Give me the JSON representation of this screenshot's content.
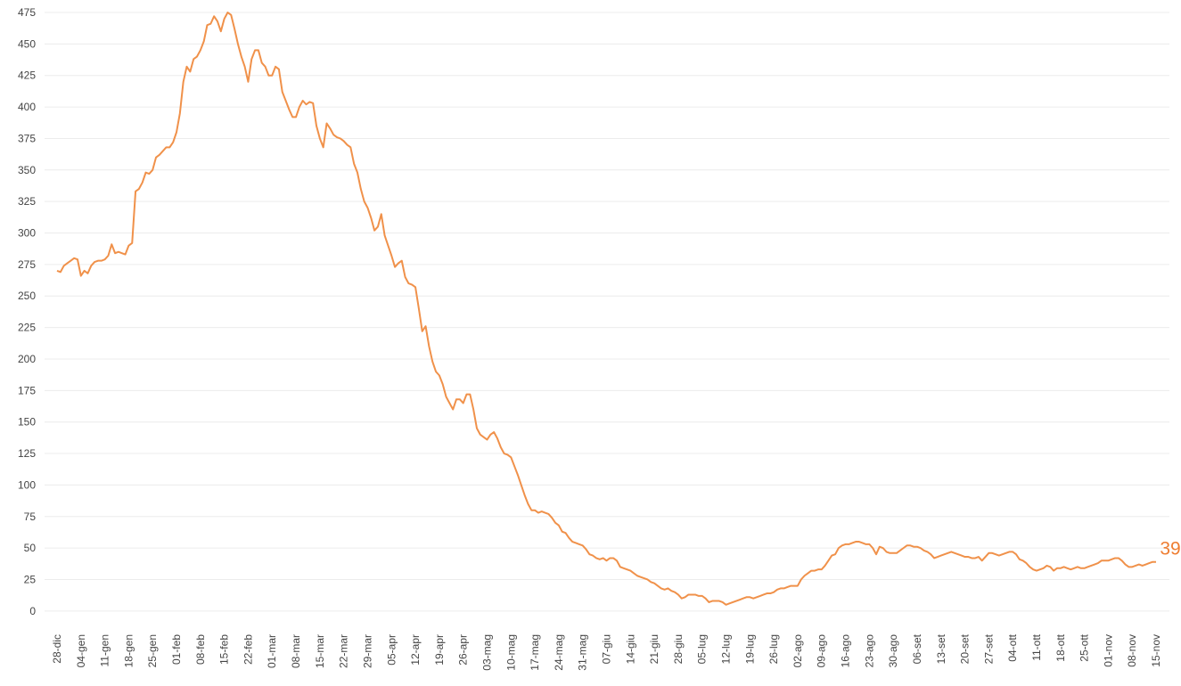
{
  "chart_data": {
    "type": "line",
    "categories": [
      "28-dic",
      null,
      null,
      null,
      null,
      null,
      null,
      "04-gen",
      null,
      null,
      null,
      null,
      null,
      null,
      "11-gen",
      null,
      null,
      null,
      null,
      null,
      null,
      "18-gen",
      null,
      null,
      null,
      null,
      null,
      null,
      "25-gen",
      null,
      null,
      null,
      null,
      null,
      null,
      "01-feb",
      null,
      null,
      null,
      null,
      null,
      null,
      "08-feb",
      null,
      null,
      null,
      null,
      null,
      null,
      "15-feb",
      null,
      null,
      null,
      null,
      null,
      null,
      "22-feb",
      null,
      null,
      null,
      null,
      null,
      null,
      "01-mar",
      null,
      null,
      null,
      null,
      null,
      null,
      "08-mar",
      null,
      null,
      null,
      null,
      null,
      null,
      "15-mar",
      null,
      null,
      null,
      null,
      null,
      null,
      "22-mar",
      null,
      null,
      null,
      null,
      null,
      null,
      "29-mar",
      null,
      null,
      null,
      null,
      null,
      null,
      "05-apr",
      null,
      null,
      null,
      null,
      null,
      null,
      "12-apr",
      null,
      null,
      null,
      null,
      null,
      null,
      "19-apr",
      null,
      null,
      null,
      null,
      null,
      null,
      "26-apr",
      null,
      null,
      null,
      null,
      null,
      null,
      "03-mag",
      null,
      null,
      null,
      null,
      null,
      null,
      "10-mag",
      null,
      null,
      null,
      null,
      null,
      null,
      "17-mag",
      null,
      null,
      null,
      null,
      null,
      null,
      "24-mag",
      null,
      null,
      null,
      null,
      null,
      null,
      "31-mag",
      null,
      null,
      null,
      null,
      null,
      null,
      "07-giu",
      null,
      null,
      null,
      null,
      null,
      null,
      "14-giu",
      null,
      null,
      null,
      null,
      null,
      null,
      "21-giu",
      null,
      null,
      null,
      null,
      null,
      null,
      "28-giu",
      null,
      null,
      null,
      null,
      null,
      null,
      "05-lug",
      null,
      null,
      null,
      null,
      null,
      null,
      "12-lug",
      null,
      null,
      null,
      null,
      null,
      null,
      "19-lug",
      null,
      null,
      null,
      null,
      null,
      null,
      "26-lug",
      null,
      null,
      null,
      null,
      null,
      null,
      "02-ago",
      null,
      null,
      null,
      null,
      null,
      null,
      "09-ago",
      null,
      null,
      null,
      null,
      null,
      null,
      "16-ago",
      null,
      null,
      null,
      null,
      null,
      null,
      "23-ago",
      null,
      null,
      null,
      null,
      null,
      null,
      "30-ago",
      null,
      null,
      null,
      null,
      null,
      null,
      "06-set",
      null,
      null,
      null,
      null,
      null,
      null,
      "13-set",
      null,
      null,
      null,
      null,
      null,
      null,
      "20-set",
      null,
      null,
      null,
      null,
      null,
      null,
      "27-set",
      null,
      null,
      null,
      null,
      null,
      null,
      "04-ott",
      null,
      null,
      null,
      null,
      null,
      null,
      "11-ott",
      null,
      null,
      null,
      null,
      null,
      null,
      "18-ott",
      null,
      null,
      null,
      null,
      null,
      null,
      "25-ott",
      null,
      null,
      null,
      null,
      null,
      null,
      "01-nov",
      null,
      null,
      null,
      null,
      null,
      null,
      "08-nov",
      null,
      null,
      null,
      null,
      null,
      null,
      "15-nov"
    ],
    "values": [
      270,
      269,
      274,
      276,
      278,
      280,
      279,
      266,
      270,
      268,
      274,
      277,
      278,
      278,
      279,
      282,
      291,
      284,
      285,
      284,
      283,
      290,
      292,
      333,
      335,
      340,
      348,
      347,
      350,
      360,
      362,
      365,
      368,
      368,
      372,
      380,
      395,
      420,
      432,
      428,
      438,
      440,
      445,
      452,
      465,
      466,
      472,
      468,
      460,
      470,
      475,
      473,
      462,
      450,
      440,
      432,
      420,
      438,
      445,
      445,
      435,
      432,
      425,
      425,
      432,
      430,
      412,
      405,
      398,
      392,
      392,
      400,
      405,
      402,
      404,
      403,
      385,
      375,
      368,
      387,
      383,
      378,
      376,
      375,
      373,
      370,
      368,
      355,
      348,
      335,
      325,
      320,
      312,
      302,
      305,
      315,
      298,
      290,
      282,
      273,
      276,
      278,
      265,
      260,
      259,
      257,
      240,
      222,
      226,
      210,
      198,
      190,
      187,
      180,
      170,
      165,
      160,
      168,
      168,
      165,
      172,
      172,
      160,
      145,
      140,
      138,
      136,
      140,
      142,
      137,
      130,
      125,
      124,
      122,
      115,
      108,
      100,
      92,
      85,
      80,
      80,
      78,
      79,
      78,
      77,
      74,
      70,
      68,
      63,
      62,
      58,
      55,
      54,
      53,
      52,
      49,
      45,
      44,
      42,
      41,
      42,
      40,
      42,
      42,
      40,
      35,
      34,
      33,
      32,
      30,
      28,
      27,
      26,
      25,
      23,
      22,
      20,
      18,
      17,
      18,
      16,
      15,
      13,
      10,
      11,
      13,
      13,
      13,
      12,
      12,
      10,
      7,
      8,
      8,
      8,
      7,
      5,
      6,
      7,
      8,
      9,
      10,
      11,
      11,
      10,
      11,
      12,
      13,
      14,
      14,
      15,
      17,
      18,
      18,
      19,
      20,
      20,
      20,
      25,
      28,
      30,
      32,
      32,
      33,
      33,
      36,
      40,
      44,
      45,
      50,
      52,
      53,
      53,
      54,
      55,
      55,
      54,
      53,
      53,
      50,
      45,
      51,
      50,
      47,
      46,
      46,
      46,
      48,
      50,
      52,
      52,
      51,
      51,
      50,
      48,
      47,
      45,
      42,
      43,
      44,
      45,
      46,
      47,
      46,
      45,
      44,
      43,
      43,
      42,
      42,
      43,
      40,
      43,
      46,
      46,
      45,
      44,
      45,
      46,
      47,
      47,
      45,
      41,
      40,
      38,
      35,
      33,
      32,
      33,
      34,
      36,
      35,
      32,
      34,
      34,
      35,
      34,
      33,
      34,
      35,
      34,
      34,
      35,
      36,
      37,
      38,
      40,
      40,
      40,
      41,
      42,
      42,
      40,
      37,
      35,
      35,
      36,
      37,
      36,
      37,
      38,
      39,
      39
    ],
    "color": "#f0914a",
    "label_color": "#ee7d31",
    "ylim": [
      -10,
      475
    ],
    "yticks": [
      0,
      25,
      50,
      75,
      100,
      125,
      150,
      175,
      200,
      225,
      250,
      275,
      300,
      325,
      350,
      375,
      400,
      425,
      450,
      475
    ],
    "grid": true
  }
}
